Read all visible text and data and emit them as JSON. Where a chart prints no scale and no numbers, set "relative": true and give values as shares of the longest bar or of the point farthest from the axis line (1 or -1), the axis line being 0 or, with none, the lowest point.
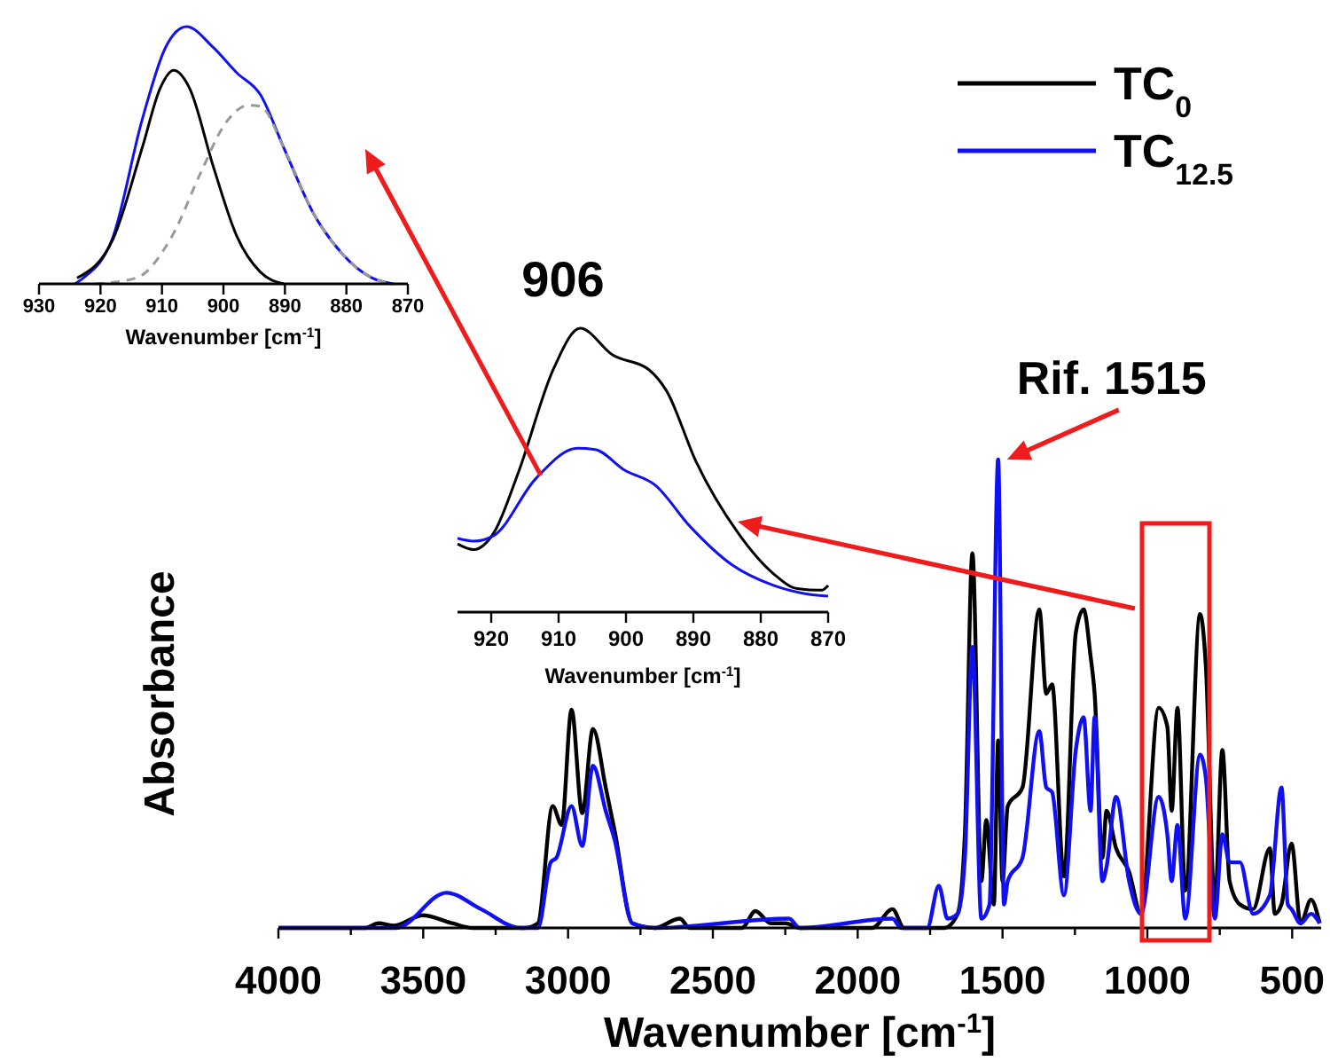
{
  "chart_data": [
    {
      "type": "line",
      "xlabel": "Wavenumber [cm$^{-1}$]",
      "ylabel": "Absorbance",
      "relative": true,
      "legend": "top right",
      "xlim": [
        4000,
        400
      ],
      "xticks": [
        4000,
        {
          "value": 3750,
          "label": null
        },
        3500,
        {
          "value": 3250,
          "label": null
        },
        3000,
        {
          "value": 2750,
          "label": null
        },
        2500,
        {
          "value": 2250,
          "label": null
        },
        2000,
        {
          "value": 1750,
          "label": null
        },
        1500,
        {
          "value": 1250,
          "label": null
        },
        1000,
        {
          "value": 750,
          "label": null
        },
        500
      ],
      "annotations": [
        {
          "text": "Rif. 1515",
          "x": 1515,
          "y": 1
        }
      ],
      "series": [
        {
          "name": "TC$_{0}$",
          "color": "#000000",
          "x": [
            4000,
            3700,
            3655,
            3600,
            3502,
            3400,
            3329,
            3150,
            3104,
            3053,
            3022,
            2988,
            2951,
            2914,
            2870,
            2839,
            2778,
            2700,
            2614,
            2580,
            2400,
            2353,
            2300,
            2250,
            2200,
            1950,
            1880,
            1840,
            1700,
            1655,
            1630,
            1604,
            1573,
            1556,
            1530,
            1515,
            1500,
            1482,
            1431,
            1373,
            1349,
            1329,
            1288,
            1247,
            1220,
            1196,
            1182,
            1155,
            1141,
            1108,
            1063,
            1022,
            961,
            931,
            916,
            896,
            869,
            818,
            798,
            767,
            741,
            716,
            680,
            635,
            577,
            560,
            537,
            502,
            471,
            435,
            405
          ],
          "values": [
            0,
            0,
            0.01,
            0.005,
            0.027,
            0.01,
            0,
            0,
            0.01,
            0.26,
            0.22,
            0.466,
            0.245,
            0.425,
            0.3,
            0.207,
            0.01,
            0,
            0.02,
            0,
            0,
            0.036,
            0.01,
            0.01,
            0,
            0,
            0.04,
            0,
            0,
            0.03,
            0.2,
            0.8,
            0.1,
            0.23,
            0.05,
            0.4,
            0.1,
            0.26,
            0.3,
            0.68,
            0.5,
            0.52,
            0.11,
            0.63,
            0.68,
            0.58,
            0.5,
            0.15,
            0.25,
            0.17,
            0.12,
            0.03,
            0.47,
            0.43,
            0.25,
            0.47,
            0.08,
            0.67,
            0.56,
            0.05,
            0.38,
            0.1,
            0.05,
            0.04,
            0.17,
            0.03,
            0.05,
            0.18,
            0.01,
            0.06,
            0.01
          ]
        },
        {
          "name": "TC$_{12.5}$",
          "color": "#1010f0",
          "x": [
            4000,
            3594,
            3420,
            3300,
            3165,
            3104,
            3060,
            3040,
            2988,
            2951,
            2914,
            2870,
            2839,
            2778,
            2700,
            2237,
            2200,
            1880,
            1850,
            1760,
            1720,
            1690,
            1655,
            1630,
            1604,
            1573,
            1545,
            1515,
            1495,
            1482,
            1431,
            1373,
            1349,
            1329,
            1288,
            1247,
            1220,
            1196,
            1182,
            1155,
            1141,
            1108,
            1063,
            1022,
            961,
            931,
            916,
            896,
            869,
            818,
            798,
            767,
            741,
            716,
            680,
            635,
            577,
            537,
            515,
            502,
            471,
            435,
            405
          ],
          "values": [
            0,
            0,
            0.075,
            0.04,
            0,
            0,
            0.14,
            0.15,
            0.26,
            0.175,
            0.346,
            0.25,
            0.188,
            0.01,
            0,
            0.02,
            0,
            0.02,
            0,
            0,
            0.09,
            0.02,
            0.03,
            0.15,
            0.6,
            0.02,
            0.05,
            1,
            0.05,
            0.1,
            0.15,
            0.42,
            0.3,
            0.29,
            0.07,
            0.38,
            0.45,
            0.25,
            0.45,
            0.1,
            0.13,
            0.28,
            0.1,
            0.03,
            0.28,
            0.2,
            0.1,
            0.22,
            0.02,
            0.37,
            0.32,
            0.02,
            0.2,
            0.14,
            0.14,
            0.03,
            0.07,
            0.3,
            0.05,
            0.04,
            0.01,
            0.03,
            0.01
          ]
        }
      ]
    },
    {
      "type": "line",
      "title": "906",
      "xlabel": "Wavenumber [cm$^{-1}$]",
      "relative": true,
      "xlim": [
        925,
        870
      ],
      "xticks": [
        920,
        910,
        900,
        890,
        880,
        870
      ],
      "series": [
        {
          "color": "#000000",
          "x": [
            925,
            922.6,
            919.6,
            916,
            910.7,
            906.8,
            902,
            896.6,
            894,
            889.6,
            883.4,
            878.1,
            874.6,
            871,
            870
          ],
          "values": [
            0.24,
            0.22,
            0.28,
            0.49,
            0.86,
            1,
            0.906,
            0.854,
            0.78,
            0.53,
            0.28,
            0.135,
            0.083,
            0.077,
            0.094
          ]
        },
        {
          "color": "#1010f0",
          "x": [
            925,
            922.6,
            919.6,
            913.4,
            907.2,
            904.6,
            900.2,
            895.7,
            890.5,
            884.3,
            878.1,
            872.8,
            870
          ],
          "values": [
            0.26,
            0.25,
            0.27,
            0.47,
            0.577,
            0.573,
            0.5,
            0.448,
            0.302,
            0.167,
            0.094,
            0.0625,
            0.056
          ]
        }
      ]
    },
    {
      "type": "line",
      "xlabel": "Wavenumber [cm$^{-1}$]",
      "relative": true,
      "xlim": [
        930,
        870
      ],
      "xticks": [
        930,
        920,
        910,
        900,
        890,
        880,
        870
      ],
      "series": [
        {
          "color": "#1010f0",
          "x": [
            924.2,
            922.8,
            918,
            913.2,
            909.4,
            906,
            901.7,
            897.8,
            894,
            890.2,
            885.4,
            880.6,
            875.8,
            872.4
          ],
          "values": [
            0,
            0.023,
            0.18,
            0.64,
            0.92,
            1,
            0.92,
            0.82,
            0.736,
            0.53,
            0.276,
            0.115,
            0.023,
            0
          ]
        },
        {
          "color": "#000000",
          "x": [
            923.8,
            918,
            913.2,
            910.3,
            908.1,
            905.5,
            901.7,
            897.8,
            894,
            890.2
          ],
          "values": [
            0.023,
            0.172,
            0.53,
            0.76,
            0.83,
            0.76,
            0.46,
            0.184,
            0.046,
            0
          ]
        },
        {
          "color": "#999999",
          "line_style": "dashed",
          "x": [
            920.9,
            914.2,
            908.4,
            903.6,
            899.8,
            896,
            894,
            890.2,
            885.4,
            880.6,
            875.8,
            872.4
          ],
          "values": [
            0,
            0.023,
            0.184,
            0.437,
            0.62,
            0.694,
            0.69,
            0.53,
            0.276,
            0.115,
            0.023,
            0
          ]
        }
      ]
    }
  ]
}
